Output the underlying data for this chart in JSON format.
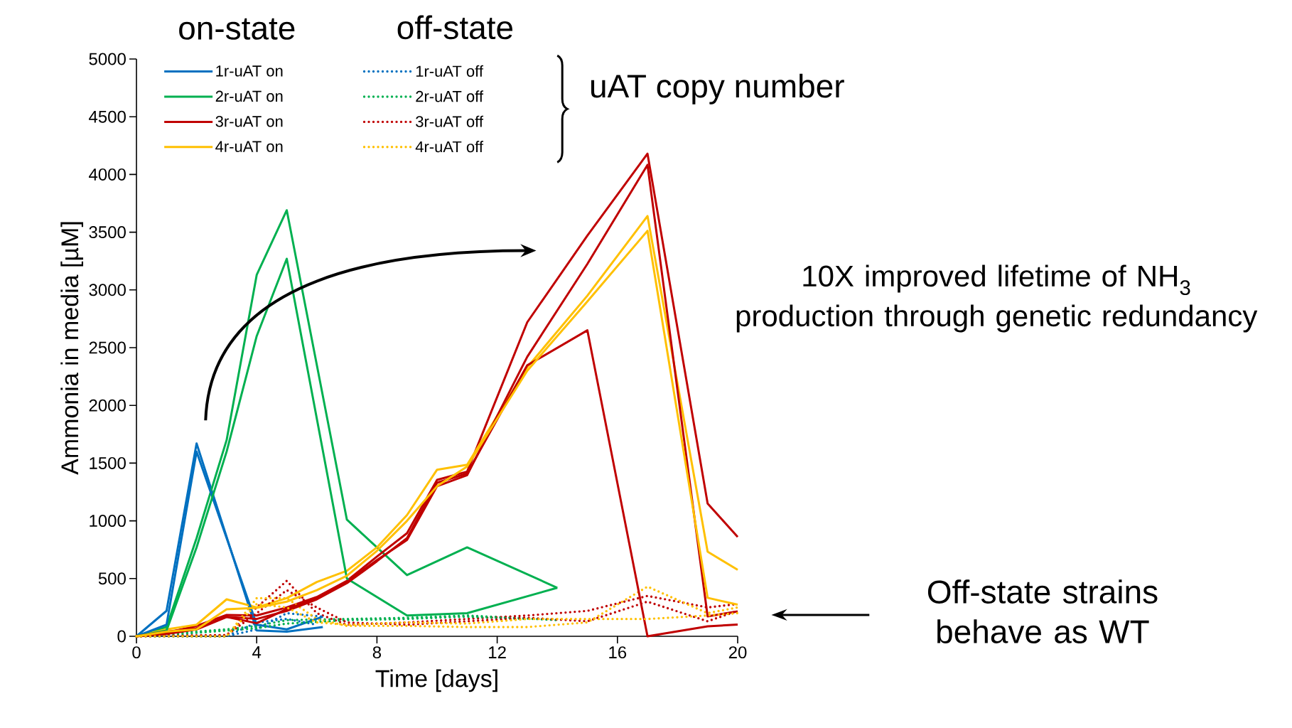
{
  "chart_data": {
    "type": "line",
    "xlabel": "Time [days]",
    "ylabel": "Ammonia in media [µM]",
    "xlim": [
      0,
      20
    ],
    "xticks": [
      0,
      4,
      8,
      12,
      16,
      20
    ],
    "ylim": [
      0,
      5000
    ],
    "yticks": [
      0,
      500,
      1000,
      1500,
      2000,
      2500,
      3000,
      3500,
      4000,
      4500,
      5000
    ],
    "legend": "top left",
    "grid": false,
    "annotations": [
      "on-state",
      "off-state",
      "uAT copy number",
      "10X improved lifetime of NH$_{3}$ production through genetic redundancy",
      "Off-state strains behave as WT"
    ],
    "series": [
      {
        "name": "1r-uAT on",
        "color": "#0070c0",
        "x": [
          0,
          1,
          2,
          4,
          5,
          6.2
        ],
        "values": [
          0,
          220,
          1670,
          50,
          40,
          80
        ]
      },
      {
        "name": "1r-uAT off",
        "color": "#0070c0",
        "line_style": "dotted",
        "x": [
          0,
          3,
          4,
          5,
          6.2
        ],
        "values": [
          0,
          0,
          60,
          200,
          170
        ]
      },
      {
        "name": "2r-uAT on",
        "color": "#00b050",
        "x": [
          0,
          1,
          2,
          3,
          4,
          5,
          7,
          9,
          11,
          14
        ],
        "values": [
          0,
          80,
          850,
          1700,
          3130,
          3690,
          1010,
          530,
          770,
          420
        ]
      },
      {
        "name": "2r-uAT off",
        "color": "#00b050",
        "line_style": "dotted",
        "x": [
          0,
          1,
          2,
          3,
          4,
          5,
          7,
          9,
          11,
          14
        ],
        "values": [
          0,
          20,
          40,
          60,
          90,
          140,
          150,
          160,
          180,
          140
        ]
      },
      {
        "name": "3r-uAT on",
        "color": "#c00000",
        "x": [
          0,
          1,
          2,
          3,
          4,
          5,
          6,
          7,
          8,
          9,
          10,
          11,
          13,
          15,
          17,
          19,
          20
        ],
        "values": [
          0,
          30,
          90,
          185,
          180,
          250,
          340,
          480,
          690,
          893,
          1355,
          1426,
          2720,
          3470,
          4180,
          1150,
          860
        ]
      },
      {
        "name": "3r-uAT off",
        "color": "#c00000",
        "line_style": "dotted",
        "x": [
          0,
          3,
          4,
          5,
          6,
          7,
          9,
          11,
          13,
          15,
          17,
          19,
          20
        ],
        "values": [
          0,
          10,
          250,
          480,
          200,
          100,
          120,
          150,
          180,
          220,
          350,
          250,
          280
        ]
      },
      {
        "name": "4r-uAT on",
        "color": "#ffc000",
        "x": [
          0,
          1,
          2,
          3,
          4,
          5,
          6,
          7,
          8,
          9,
          10,
          11,
          13,
          15,
          17,
          19,
          20
        ],
        "values": [
          0,
          60,
          100,
          320,
          250,
          330,
          470,
          567,
          770,
          1050,
          1443,
          1485,
          2330,
          2950,
          3640,
          733,
          576
        ]
      },
      {
        "name": "4r-uAT off",
        "color": "#ffc000",
        "line_style": "dotted",
        "x": [
          0,
          3,
          4,
          5,
          6,
          7,
          9,
          11,
          13,
          15,
          17,
          19,
          20
        ],
        "values": [
          0,
          0,
          330,
          330,
          150,
          90,
          90,
          80,
          80,
          120,
          430,
          200,
          250
        ]
      },
      {
        "color": "#0070c0",
        "x": [
          0,
          1,
          2,
          4,
          5,
          6.2
        ],
        "values": [
          0,
          100,
          1600,
          100,
          60,
          170
        ]
      },
      {
        "color": "#0070c0",
        "line_style": "dotted",
        "x": [
          0,
          3,
          4,
          5,
          6
        ],
        "values": [
          0,
          0,
          120,
          150,
          100
        ]
      },
      {
        "color": "#00b050",
        "x": [
          0,
          1,
          2,
          3,
          4,
          5,
          7,
          9,
          11,
          14
        ],
        "values": [
          0,
          50,
          770,
          1600,
          2600,
          3270,
          500,
          180,
          200,
          420
        ]
      },
      {
        "color": "#00b050",
        "line_style": "dotted",
        "x": [
          0,
          1,
          2,
          3,
          4,
          5,
          7,
          9,
          11,
          13
        ],
        "values": [
          0,
          10,
          30,
          50,
          70,
          110,
          140,
          150,
          170,
          150
        ]
      },
      {
        "color": "#c00000",
        "x": [
          0,
          1,
          2,
          3,
          4,
          5,
          6,
          7,
          8,
          9,
          10,
          11,
          13,
          15,
          17,
          19,
          20
        ],
        "values": [
          0,
          20,
          60,
          167,
          113,
          236,
          330,
          470,
          660,
          834,
          1300,
          1395,
          2421,
          3225,
          4083,
          172,
          216
        ]
      },
      {
        "color": "#c00000",
        "x": [
          0,
          1,
          2,
          3,
          4,
          5,
          6,
          7,
          8,
          9,
          10,
          11,
          13,
          15,
          17,
          19,
          20
        ],
        "values": [
          0,
          40,
          70,
          170,
          150,
          220,
          320,
          460,
          650,
          850,
          1330,
          1410,
          2347,
          2650,
          0,
          86,
          101
        ]
      },
      {
        "color": "#c00000",
        "line_style": "dotted",
        "x": [
          0,
          3,
          4,
          5,
          6,
          7,
          9,
          11,
          13,
          15,
          17,
          19,
          20
        ],
        "values": [
          0,
          10,
          200,
          400,
          250,
          120,
          100,
          130,
          160,
          130,
          300,
          130,
          220
        ]
      },
      {
        "color": "#ffc000",
        "x": [
          0,
          1,
          2,
          3,
          4,
          5,
          6,
          7,
          8,
          9,
          10,
          11,
          13,
          15,
          17,
          19,
          20
        ],
        "values": [
          0,
          40,
          60,
          234,
          246,
          300,
          400,
          524,
          740,
          1000,
          1300,
          1470,
          2300,
          2900,
          3512,
          333,
          274
        ]
      },
      {
        "color": "#ffc000",
        "line_style": "dotted",
        "x": [
          0,
          3,
          4,
          5,
          6,
          7,
          9,
          11,
          13,
          15,
          17,
          19,
          20
        ],
        "values": [
          0,
          0,
          280,
          250,
          120,
          100,
          120,
          110,
          150,
          150,
          150,
          180,
          200
        ]
      }
    ]
  }
}
